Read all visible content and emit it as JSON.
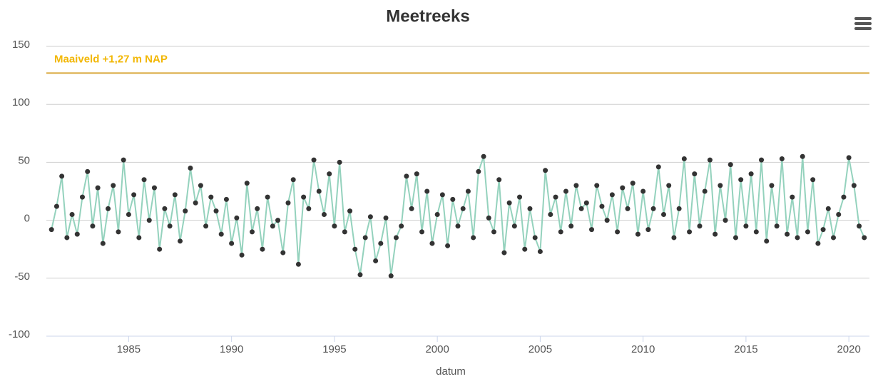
{
  "chart_data": {
    "type": "line",
    "title": "Meetreeks",
    "x_label": "datum",
    "xlim": [
      1981,
      2021
    ],
    "xticks": [
      1985,
      1990,
      1995,
      2000,
      2005,
      2010,
      2015,
      2020
    ],
    "ylim": [
      -100,
      150
    ],
    "yticks": [
      -100,
      -50,
      0,
      50,
      100,
      150
    ],
    "grid": true,
    "reference_line": {
      "value": 127,
      "label": "Maaiveld +1,27 m NAP",
      "color": "#d9a83c",
      "label_color": "#f2b705"
    },
    "x": [
      1981.25,
      1981.5,
      1981.75,
      1982,
      1982.25,
      1982.5,
      1982.75,
      1983,
      1983.25,
      1983.5,
      1983.75,
      1984,
      1984.25,
      1984.5,
      1984.75,
      1985,
      1985.25,
      1985.5,
      1985.75,
      1986,
      1986.25,
      1986.5,
      1986.75,
      1987,
      1987.25,
      1987.5,
      1987.75,
      1988,
      1988.25,
      1988.5,
      1988.75,
      1989,
      1989.25,
      1989.5,
      1989.75,
      1990,
      1990.25,
      1990.5,
      1990.75,
      1991,
      1991.25,
      1991.5,
      1991.75,
      1992,
      1992.25,
      1992.5,
      1992.75,
      1993,
      1993.25,
      1993.5,
      1993.75,
      1994,
      1994.25,
      1994.5,
      1994.75,
      1995,
      1995.25,
      1995.5,
      1995.75,
      1996,
      1996.25,
      1996.5,
      1996.75,
      1997,
      1997.25,
      1997.5,
      1997.75,
      1998,
      1998.25,
      1998.5,
      1998.75,
      1999,
      1999.25,
      1999.5,
      1999.75,
      2000,
      2000.25,
      2000.5,
      2000.75,
      2001,
      2001.25,
      2001.5,
      2001.75,
      2002,
      2002.25,
      2002.5,
      2002.75,
      2003,
      2003.25,
      2003.5,
      2003.75,
      2004,
      2004.25,
      2004.5,
      2004.75,
      2005,
      2005.25,
      2005.5,
      2005.75,
      2006,
      2006.25,
      2006.5,
      2006.75,
      2007,
      2007.25,
      2007.5,
      2007.75,
      2008,
      2008.25,
      2008.5,
      2008.75,
      2009,
      2009.25,
      2009.5,
      2009.75,
      2010,
      2010.25,
      2010.5,
      2010.75,
      2011,
      2011.25,
      2011.5,
      2011.75,
      2012,
      2012.25,
      2012.5,
      2012.75,
      2013,
      2013.25,
      2013.5,
      2013.75,
      2014,
      2014.25,
      2014.5,
      2014.75,
      2015,
      2015.25,
      2015.5,
      2015.75,
      2016,
      2016.25,
      2016.5,
      2016.75,
      2017,
      2017.25,
      2017.5,
      2017.75,
      2018,
      2018.25,
      2018.5,
      2018.75,
      2019,
      2019.25,
      2019.5,
      2019.75,
      2020,
      2020.25,
      2020.5,
      2020.75
    ],
    "series": [
      {
        "line_color": "#94d2bd",
        "marker_color": "#333333",
        "values": [
          -8,
          12,
          38,
          -15,
          5,
          -12,
          20,
          42,
          -5,
          28,
          -20,
          10,
          30,
          -10,
          52,
          5,
          22,
          -15,
          35,
          0,
          28,
          -25,
          10,
          -5,
          22,
          -18,
          8,
          45,
          15,
          30,
          -5,
          20,
          8,
          -12,
          18,
          -20,
          2,
          -30,
          32,
          -10,
          10,
          -25,
          20,
          -5,
          0,
          -28,
          15,
          35,
          -38,
          20,
          10,
          52,
          25,
          5,
          40,
          -5,
          50,
          -10,
          8,
          -25,
          -47,
          -15,
          3,
          -35,
          -20,
          2,
          -48,
          -15,
          -5,
          38,
          10,
          40,
          -10,
          25,
          -20,
          5,
          22,
          -22,
          18,
          -5,
          10,
          25,
          -15,
          42,
          55,
          2,
          -10,
          35,
          -28,
          15,
          -5,
          20,
          -25,
          10,
          -15,
          -27,
          43,
          5,
          20,
          -10,
          25,
          -5,
          30,
          10,
          15,
          -8,
          30,
          12,
          0,
          22,
          -10,
          28,
          10,
          32,
          -12,
          25,
          -8,
          10,
          46,
          5,
          30,
          -15,
          10,
          53,
          -10,
          40,
          -5,
          25,
          52,
          -12,
          30,
          0,
          48,
          -15,
          35,
          -5,
          40,
          -10,
          52,
          -18,
          30,
          -5,
          53,
          -12,
          20,
          -15,
          55,
          -10,
          35,
          -20,
          -8,
          10,
          -15,
          5,
          20,
          54,
          30,
          -5,
          -15
        ]
      }
    ]
  }
}
